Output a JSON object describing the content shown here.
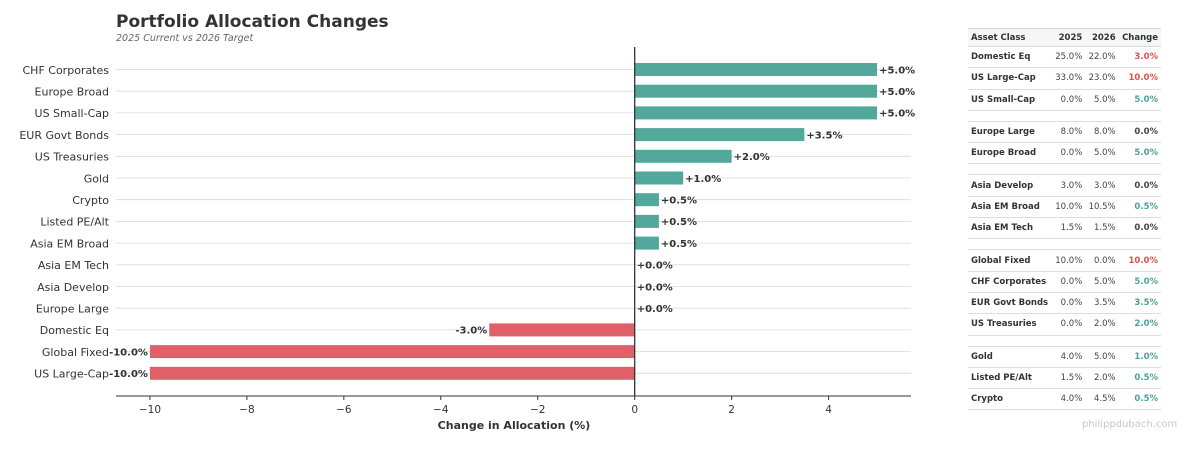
{
  "chart_data": {
    "type": "bar",
    "orientation": "horizontal",
    "title": "Portfolio Allocation Changes",
    "subtitle": "2025 Current vs 2026 Target",
    "xlabel": "Change in Allocation (%)",
    "ylabel": "",
    "xlim": [
      -10.7,
      5.7
    ],
    "xticks": [
      -10,
      -8,
      -6,
      -4,
      -2,
      0,
      2,
      4
    ],
    "xtick_labels": [
      "−10",
      "−8",
      "−6",
      "−4",
      "−2",
      "0",
      "2",
      "4"
    ],
    "grid": "horizontal",
    "categories": [
      "CHF Corporates",
      "Europe Broad",
      "US Small-Cap",
      "EUR Govt Bonds",
      "US Treasuries",
      "Gold",
      "Crypto",
      "Listed PE/Alt",
      "Asia EM Broad",
      "Asia EM Tech",
      "Asia Develop",
      "Europe Large",
      "Domestic Eq",
      "Global Fixed",
      "US Large-Cap"
    ],
    "values": [
      5.0,
      5.0,
      5.0,
      3.5,
      2.0,
      1.0,
      0.5,
      0.5,
      0.5,
      0.0,
      0.0,
      0.0,
      -3.0,
      -10.0,
      -10.0
    ],
    "data_labels": [
      "+5.0%",
      "+5.0%",
      "+5.0%",
      "+3.5%",
      "+2.0%",
      "+1.0%",
      "+0.5%",
      "+0.5%",
      "+0.5%",
      "+0.0%",
      "+0.0%",
      "+0.0%",
      "-3.0%",
      "-10.0%",
      "-10.0%"
    ],
    "colors": {
      "positive": "#52a89a",
      "negative": "#e0606a"
    }
  },
  "table": {
    "headers": [
      "Asset Class",
      "2025",
      "2026",
      "Change"
    ],
    "groups": [
      [
        {
          "asset": "Domestic Eq",
          "y2025": "25.0%",
          "y2026": "22.0%",
          "change": "3.0%",
          "sign": "negative"
        },
        {
          "asset": "US Large-Cap",
          "y2025": "33.0%",
          "y2026": "23.0%",
          "change": "10.0%",
          "sign": "negative"
        },
        {
          "asset": "US Small-Cap",
          "y2025": "0.0%",
          "y2026": "5.0%",
          "change": "5.0%",
          "sign": "positive"
        }
      ],
      [
        {
          "asset": "Europe Large",
          "y2025": "8.0%",
          "y2026": "8.0%",
          "change": "0.0%",
          "sign": "neutral"
        },
        {
          "asset": "Europe Broad",
          "y2025": "0.0%",
          "y2026": "5.0%",
          "change": "5.0%",
          "sign": "positive"
        }
      ],
      [
        {
          "asset": "Asia Develop",
          "y2025": "3.0%",
          "y2026": "3.0%",
          "change": "0.0%",
          "sign": "neutral"
        },
        {
          "asset": "Asia EM Broad",
          "y2025": "10.0%",
          "y2026": "10.5%",
          "change": "0.5%",
          "sign": "positive"
        },
        {
          "asset": "Asia EM Tech",
          "y2025": "1.5%",
          "y2026": "1.5%",
          "change": "0.0%",
          "sign": "neutral"
        }
      ],
      [
        {
          "asset": "Global Fixed",
          "y2025": "10.0%",
          "y2026": "0.0%",
          "change": "10.0%",
          "sign": "negative"
        },
        {
          "asset": "CHF Corporates",
          "y2025": "0.0%",
          "y2026": "5.0%",
          "change": "5.0%",
          "sign": "positive"
        },
        {
          "asset": "EUR Govt Bonds",
          "y2025": "0.0%",
          "y2026": "3.5%",
          "change": "3.5%",
          "sign": "positive"
        },
        {
          "asset": "US Treasuries",
          "y2025": "0.0%",
          "y2026": "2.0%",
          "change": "2.0%",
          "sign": "positive"
        }
      ],
      [
        {
          "asset": "Gold",
          "y2025": "4.0%",
          "y2026": "5.0%",
          "change": "1.0%",
          "sign": "positive"
        },
        {
          "asset": "Listed PE/Alt",
          "y2025": "1.5%",
          "y2026": "2.0%",
          "change": "0.5%",
          "sign": "positive"
        },
        {
          "asset": "Crypto",
          "y2025": "4.0%",
          "y2026": "4.5%",
          "change": "0.5%",
          "sign": "positive"
        }
      ]
    ],
    "sign_colors": {
      "positive": "#4aa394",
      "negative": "#d9534f",
      "neutral": "#444444"
    }
  },
  "watermark": "philippdubach.com"
}
